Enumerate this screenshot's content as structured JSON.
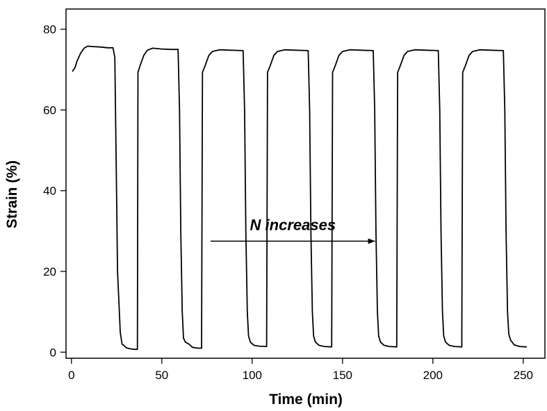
{
  "chart_data": {
    "type": "line",
    "title": "",
    "xlabel": "Time (min)",
    "ylabel": "Strain (%)",
    "xlim": [
      -3,
      262
    ],
    "ylim": [
      -1.5,
      85
    ],
    "xticks": [
      0,
      50,
      100,
      150,
      200,
      250
    ],
    "yticks": [
      0,
      20,
      40,
      60,
      80
    ],
    "grid": false,
    "legend": "none",
    "line_color": "#000000",
    "annotation": {
      "text": "N increases",
      "arrow_from": [
        77,
        27.5
      ],
      "arrow_to": [
        168,
        27.5
      ]
    },
    "series": [
      {
        "values": [
          [
            0.5,
            69.5
          ],
          [
            2,
            70.5
          ],
          [
            3,
            72
          ],
          [
            5,
            74
          ],
          [
            7,
            75.3
          ],
          [
            9,
            75.8
          ],
          [
            12,
            75.7
          ],
          [
            16,
            75.6
          ],
          [
            20,
            75.4
          ],
          [
            23,
            75.4
          ],
          [
            24,
            73
          ],
          [
            24.8,
            45
          ],
          [
            25.5,
            20
          ],
          [
            26.3,
            12
          ],
          [
            27,
            5
          ],
          [
            28,
            2
          ],
          [
            29,
            1.7
          ],
          [
            30,
            1.2
          ],
          [
            31,
            1.0
          ],
          [
            33,
            0.8
          ],
          [
            35,
            0.7
          ],
          [
            36.5,
            0.7
          ],
          [
            36.8,
            69.3
          ],
          [
            38,
            71
          ],
          [
            40,
            73.5
          ],
          [
            42,
            74.8
          ],
          [
            45,
            75.3
          ],
          [
            50,
            75.1
          ],
          [
            55,
            75.0
          ],
          [
            59,
            75.0
          ],
          [
            59.8,
            60
          ],
          [
            60.5,
            30
          ],
          [
            61.3,
            10
          ],
          [
            62,
            3.5
          ],
          [
            63,
            2.5
          ],
          [
            65,
            2
          ],
          [
            67,
            1.2
          ],
          [
            70,
            1.0
          ],
          [
            72,
            1.0
          ],
          [
            72.5,
            69.3
          ],
          [
            74,
            71
          ],
          [
            76,
            73.5
          ],
          [
            78,
            74.5
          ],
          [
            82,
            74.9
          ],
          [
            88,
            74.8
          ],
          [
            95,
            74.7
          ],
          [
            95.8,
            60
          ],
          [
            96.5,
            30
          ],
          [
            97.3,
            10
          ],
          [
            98,
            4
          ],
          [
            99,
            2.5
          ],
          [
            101,
            1.7
          ],
          [
            104,
            1.5
          ],
          [
            108,
            1.4
          ],
          [
            108.5,
            69.3
          ],
          [
            110,
            71
          ],
          [
            112,
            73.5
          ],
          [
            114,
            74.5
          ],
          [
            118,
            74.9
          ],
          [
            124,
            74.8
          ],
          [
            131,
            74.7
          ],
          [
            131.8,
            60
          ],
          [
            132.5,
            30
          ],
          [
            133.3,
            10
          ],
          [
            134,
            4
          ],
          [
            135,
            2.5
          ],
          [
            137,
            1.7
          ],
          [
            140,
            1.4
          ],
          [
            144,
            1.3
          ],
          [
            144.5,
            69.3
          ],
          [
            146,
            71
          ],
          [
            148,
            73.5
          ],
          [
            150,
            74.5
          ],
          [
            154,
            74.9
          ],
          [
            160,
            74.8
          ],
          [
            167,
            74.7
          ],
          [
            167.8,
            60
          ],
          [
            168.5,
            30
          ],
          [
            169.3,
            10
          ],
          [
            170,
            4
          ],
          [
            171,
            2.5
          ],
          [
            173,
            1.7
          ],
          [
            176,
            1.4
          ],
          [
            180,
            1.3
          ],
          [
            180.5,
            69.3
          ],
          [
            182,
            71
          ],
          [
            184,
            73.5
          ],
          [
            186,
            74.5
          ],
          [
            190,
            74.9
          ],
          [
            196,
            74.8
          ],
          [
            203,
            74.7
          ],
          [
            203.8,
            60
          ],
          [
            204.5,
            30
          ],
          [
            205.3,
            10
          ],
          [
            206,
            4
          ],
          [
            207,
            2.5
          ],
          [
            209,
            1.7
          ],
          [
            212,
            1.4
          ],
          [
            216,
            1.3
          ],
          [
            216.5,
            69.3
          ],
          [
            218,
            71
          ],
          [
            220,
            73.5
          ],
          [
            222,
            74.5
          ],
          [
            226,
            74.9
          ],
          [
            232,
            74.8
          ],
          [
            239,
            74.7
          ],
          [
            239.8,
            60
          ],
          [
            240.5,
            30
          ],
          [
            241.3,
            10
          ],
          [
            242,
            4.5
          ],
          [
            243,
            3
          ],
          [
            245,
            1.8
          ],
          [
            248,
            1.4
          ],
          [
            252,
            1.3
          ]
        ]
      }
    ]
  }
}
